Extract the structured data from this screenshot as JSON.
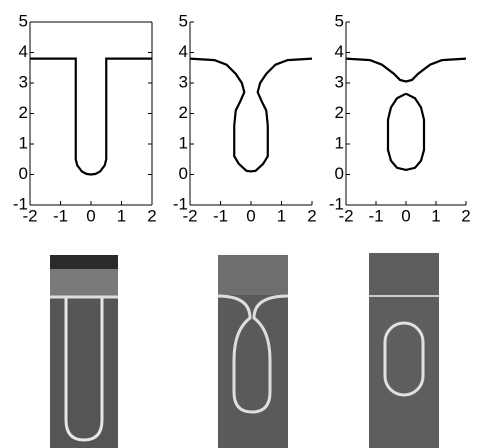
{
  "chart_data": [
    {
      "type": "line",
      "frame": true,
      "xlim": [
        -2,
        2
      ],
      "ylim": [
        -1,
        5
      ],
      "xticks": [
        -2,
        -1,
        0,
        1,
        2
      ],
      "yticks": [
        -1,
        0,
        1,
        2,
        3,
        4,
        5
      ],
      "series": [
        {
          "color": "#000000",
          "x": [
            -2,
            -0.5,
            -0.5,
            -0.45,
            -0.3,
            -0.15,
            0,
            0.15,
            0.3,
            0.45,
            0.5,
            0.5,
            2
          ],
          "values": [
            3.8,
            3.8,
            0.5,
            0.3,
            0.1,
            0.02,
            0,
            0.02,
            0.1,
            0.3,
            0.5,
            3.8,
            3.8
          ]
        }
      ]
    },
    {
      "type": "line",
      "frame": false,
      "xlim": [
        -2,
        2
      ],
      "ylim": [
        -1,
        5
      ],
      "xticks": [
        -2,
        -1,
        0,
        1,
        2
      ],
      "yticks": [
        -1,
        0,
        1,
        2,
        3,
        4,
        5
      ],
      "series": [
        {
          "color": "#000000",
          "x": [
            -2,
            -1.2,
            -0.8,
            -0.5,
            -0.3,
            -0.22,
            -0.35,
            -0.5,
            -0.55,
            -0.55,
            -0.4,
            -0.15,
            0,
            0.15,
            0.4,
            0.55,
            0.55,
            0.5,
            0.35,
            0.22,
            0.3,
            0.5,
            0.8,
            1.2,
            2
          ],
          "values": [
            3.8,
            3.75,
            3.6,
            3.3,
            3.0,
            2.7,
            2.4,
            2.1,
            1.6,
            0.6,
            0.35,
            0.12,
            0.1,
            0.12,
            0.35,
            0.6,
            1.6,
            2.1,
            2.4,
            2.7,
            3.0,
            3.3,
            3.6,
            3.75,
            3.8
          ]
        }
      ]
    },
    {
      "type": "line",
      "frame": false,
      "xlim": [
        -2,
        2
      ],
      "ylim": [
        -1,
        5
      ],
      "xticks": [
        -2,
        -1,
        0,
        1,
        2
      ],
      "yticks": [
        -1,
        0,
        1,
        2,
        3,
        4,
        5
      ],
      "series": [
        {
          "color": "#000000",
          "x": [
            -2,
            -1.2,
            -0.8,
            -0.4,
            -0.2,
            0,
            0.2,
            0.4,
            0.8,
            1.2,
            2
          ],
          "values": [
            3.8,
            3.75,
            3.6,
            3.3,
            3.1,
            3.05,
            3.1,
            3.3,
            3.6,
            3.75,
            3.8
          ]
        },
        {
          "color": "#000000",
          "x": [
            0,
            -0.3,
            -0.5,
            -0.6,
            -0.6,
            -0.5,
            -0.3,
            0,
            0.3,
            0.5,
            0.6,
            0.6,
            0.5,
            0.3,
            0
          ],
          "values": [
            2.65,
            2.5,
            2.2,
            1.8,
            0.8,
            0.45,
            0.22,
            0.15,
            0.22,
            0.45,
            0.8,
            1.8,
            2.2,
            2.5,
            2.65
          ]
        }
      ]
    }
  ]
}
